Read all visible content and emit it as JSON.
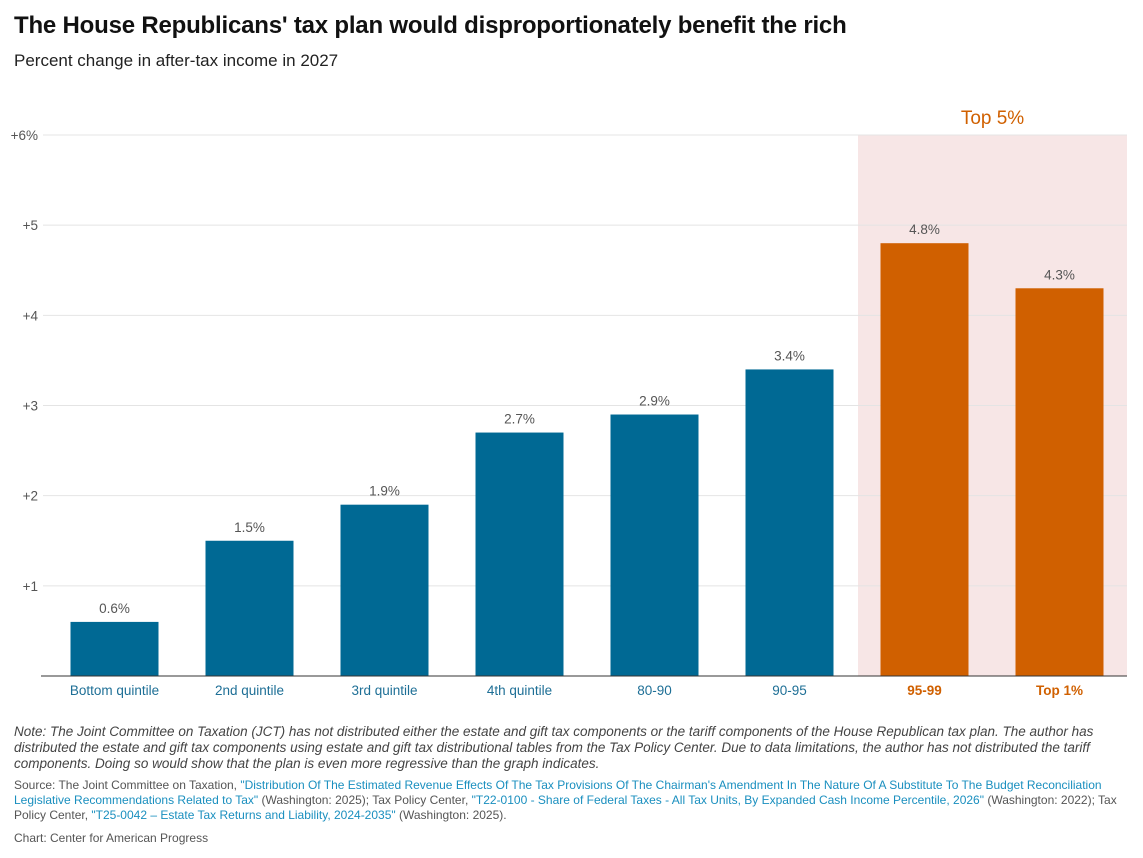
{
  "title": "The House Republicans' tax plan would disproportionately benefit the rich",
  "subtitle": "Percent change in after-tax income in 2027",
  "colors": {
    "regular": "#006994",
    "highlight": "#d06000",
    "highlight_band": "#f7e6e6",
    "regular_label": "#1e6f96",
    "value_label": "#555555",
    "gridline": "#e4e4e4"
  },
  "chart_data": {
    "type": "bar",
    "categories": [
      "Bottom quintile",
      "2nd quintile",
      "3rd quintile",
      "4th quintile",
      "80-90",
      "90-95",
      "95-99",
      "Top 1%"
    ],
    "values": [
      0.6,
      1.5,
      1.9,
      2.7,
      2.9,
      3.4,
      4.8,
      4.3
    ],
    "value_labels": [
      "0.6%",
      "1.5%",
      "1.9%",
      "2.7%",
      "2.9%",
      "3.4%",
      "4.8%",
      "4.3%"
    ],
    "highlight_categories": [
      "95-99",
      "Top 1%"
    ],
    "highlight_label": "Top 5%",
    "ylim": [
      0,
      6
    ],
    "yticks": [
      1,
      2,
      3,
      4,
      5,
      6
    ],
    "ytick_labels": [
      "+1",
      "+2",
      "+3",
      "+4",
      "+5",
      "+6%"
    ],
    "xlabel": "",
    "ylabel": "",
    "grid": true
  },
  "note": "Note: The Joint Committee on Taxation (JCT) has not distributed either the estate and gift tax components or the tariff components of the House Republican tax plan. The author has distributed the estate and gift tax components using estate and gift tax distributional tables from the Tax Policy Center. Due to data limitations, the author has not distributed the tariff components. Doing so would show that the plan is even more regressive than the graph indicates.",
  "source": {
    "prefix": "Source: The Joint Committee on Taxation, ",
    "link1": "\"Distribution Of The Estimated Revenue Effects Of The Tax Provisions Of The Chairman's Amendment In The Nature Of A Substitute To The Budget Reconciliation Legislative Recommendations Related to Tax\"",
    "mid1": " (Washington: 2025); Tax Policy Center, ",
    "link2": "\"T22-0100 - Share of Federal Taxes - All Tax Units, By Expanded Cash Income Percentile, 2026\"",
    "mid2": " (Washington: 2022); Tax Policy Center, ",
    "link3": "\"T25-0042 – Estate Tax Returns and Liability, 2024-2035\"",
    "suffix": " (Washington: 2025)."
  },
  "credit": "Chart: Center for American Progress"
}
